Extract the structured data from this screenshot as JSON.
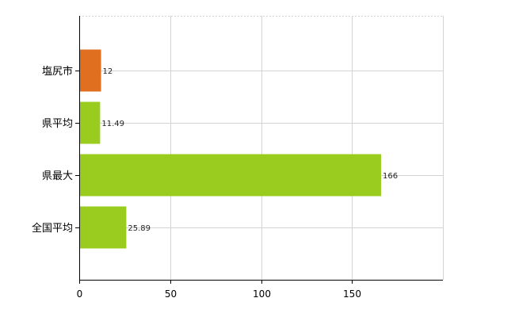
{
  "chart_data": {
    "type": "bar",
    "orientation": "horizontal",
    "categories": [
      "塩尻市",
      "県平均",
      "県最大",
      "全国平均"
    ],
    "values": [
      12,
      11.49,
      166,
      25.89
    ],
    "value_labels": [
      "12",
      "11.49",
      "166",
      "25.89"
    ],
    "bar_colors": [
      "#e07020",
      "#99cc1f",
      "#99cc1f",
      "#99cc1f"
    ],
    "highlight_color": "#e07020",
    "default_color": "#99cc1f",
    "title": "",
    "xlabel": "",
    "ylabel": "",
    "xlim": [
      0,
      200
    ],
    "x_ticks": [
      0,
      50,
      100,
      150
    ],
    "x_tick_labels": [
      "0",
      "50",
      "100",
      "150"
    ],
    "grid": true,
    "legend": "none"
  }
}
